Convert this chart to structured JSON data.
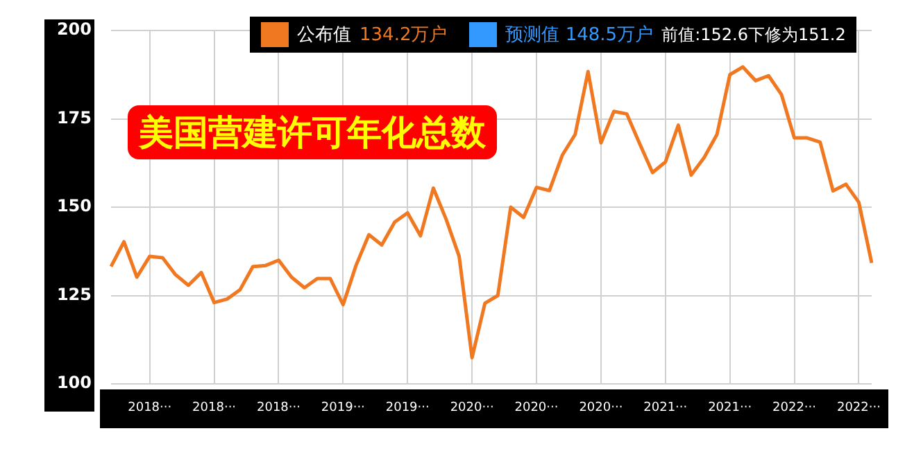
{
  "chart_data": {
    "type": "line",
    "title": "美国营建许可年化总数",
    "categories": [
      null,
      null,
      null,
      "2018···",
      null,
      null,
      null,
      null,
      "2018···",
      null,
      null,
      null,
      null,
      "2018···",
      null,
      null,
      null,
      null,
      "2019···",
      null,
      null,
      null,
      null,
      "2019···",
      null,
      null,
      null,
      null,
      "2020···",
      null,
      null,
      null,
      null,
      "2020···",
      null,
      null,
      null,
      null,
      "2020···",
      null,
      null,
      null,
      null,
      "2021···",
      null,
      null,
      null,
      null,
      "2021···",
      null,
      null,
      null,
      null,
      "2022···",
      null,
      null,
      null,
      null,
      "2022···",
      null
    ],
    "series": [
      {
        "name": "公布值",
        "color": "#f07820",
        "values": [
          133.2,
          140.2,
          130.2,
          136.1,
          135.7,
          130.9,
          127.9,
          131.5,
          123,
          124,
          126.6,
          133.2,
          133.5,
          135,
          130.2,
          127.2,
          129.8,
          129.8,
          122.4,
          133.5,
          142.2,
          139.3,
          145.8,
          148.4,
          141.9,
          155.4,
          146.5,
          136.1,
          107.4,
          122.8,
          125,
          150,
          147.1,
          155.6,
          154.7,
          164.7,
          170.6,
          188.4,
          168.2,
          177.1,
          176.4,
          168,
          159.8,
          162.8,
          173.2,
          159.1,
          164,
          170.6,
          187.5,
          189.7,
          185.8,
          187.2,
          181.9,
          169.6,
          169.6,
          168.4,
          154.6,
          156.5,
          151.4,
          134.2
        ]
      }
    ],
    "annotations": [
      "134.2万户",
      "预测值 148.5万户",
      "前值:152.6下修为151.2"
    ],
    "ylim": [
      100,
      200
    ],
    "yticks": [
      100,
      125,
      150,
      175,
      200
    ],
    "grid": true,
    "legend": "top",
    "marker": "none",
    "line_style": "solid"
  }
}
